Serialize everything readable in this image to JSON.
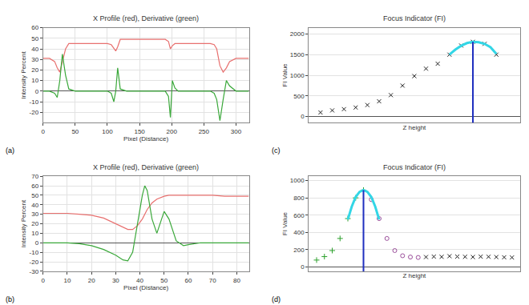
{
  "chart_data": [
    {
      "type": "line",
      "panel": "(a)",
      "title": "X Profile (red), Derivative (green)",
      "x_label": "Pixel (Distance)",
      "y_label": "Intensity Percent",
      "x": [
        0,
        10,
        18,
        22,
        26,
        30,
        35,
        40,
        50,
        100,
        106,
        110,
        113,
        116,
        120,
        130,
        190,
        195,
        198,
        201,
        205,
        210,
        260,
        266,
        270,
        275,
        280,
        285,
        290,
        300,
        320
      ],
      "series": [
        {
          "color": "#e8706f",
          "type": "line",
          "values": [
            31,
            31,
            28,
            22,
            18,
            28,
            40,
            45,
            45,
            45,
            44,
            40,
            38,
            42,
            49,
            49,
            49,
            47,
            40,
            43,
            45,
            45,
            45,
            44,
            40,
            24,
            18,
            22,
            28,
            31,
            31
          ]
        },
        {
          "color": "#3aa83a",
          "type": "line",
          "values": [
            0,
            0,
            -2,
            -6,
            10,
            35,
            15,
            2,
            0,
            0,
            -2,
            -10,
            0,
            22,
            2,
            0,
            0,
            -5,
            -25,
            10,
            3,
            0,
            0,
            -2,
            -8,
            -28,
            -8,
            10,
            5,
            0,
            0
          ]
        }
      ],
      "xlim": [
        0,
        320
      ],
      "xticks": [
        0,
        50,
        100,
        150,
        200,
        250,
        300
      ],
      "ylim": [
        -30,
        60
      ],
      "yticks": [
        -20,
        -10,
        0,
        10,
        20,
        30,
        40,
        50,
        60
      ],
      "grid": true
    },
    {
      "type": "line",
      "panel": "(b)",
      "title": "X Profile (red), Derivative (green)",
      "x_label": "Pixel (Distance)",
      "y_label": "Intensity Percent",
      "x": [
        0,
        5,
        10,
        15,
        20,
        25,
        30,
        33,
        35,
        37,
        39,
        41,
        42,
        43,
        45,
        47,
        50,
        52,
        55,
        58,
        60,
        65,
        70,
        75,
        80,
        85
      ],
      "series": [
        {
          "color": "#e8706f",
          "type": "line",
          "values": [
            31,
            31,
            31,
            30,
            29,
            26,
            20,
            16,
            14,
            14,
            18,
            25,
            30,
            35,
            42,
            46,
            49,
            50,
            50,
            50,
            50,
            50,
            50,
            49,
            49,
            49
          ]
        },
        {
          "color": "#3aa83a",
          "type": "line",
          "values": [
            0,
            0,
            0,
            -1,
            -3,
            -7,
            -13,
            -18,
            -19,
            -10,
            20,
            50,
            60,
            55,
            25,
            10,
            33,
            25,
            2,
            -3,
            -2,
            0,
            0,
            0,
            0,
            0
          ]
        }
      ],
      "xlim": [
        0,
        85
      ],
      "xticks": [
        0,
        10,
        20,
        30,
        40,
        50,
        60,
        70,
        80
      ],
      "ylim": [
        -30,
        70
      ],
      "yticks": [
        -30,
        -20,
        -10,
        0,
        10,
        20,
        30,
        40,
        50,
        60,
        70
      ],
      "grid": true
    },
    {
      "type": "scatter",
      "panel": "(c)",
      "title": "Focus Indicator (FI)",
      "x_label": "Z height",
      "y_label": "FI Value",
      "series": [
        {
          "color": "#222222",
          "type": "scatter",
          "marker": "x",
          "x": [
            1,
            2,
            3,
            4,
            5,
            6,
            7,
            8,
            9,
            10,
            11,
            12,
            13,
            14,
            15,
            16
          ],
          "values": [
            100,
            150,
            180,
            220,
            280,
            370,
            520,
            750,
            980,
            1160,
            1280,
            1500,
            1720,
            1810,
            1760,
            1500
          ]
        },
        {
          "color": "#33d6e6",
          "type": "line",
          "x": [
            12,
            12.5,
            13,
            13.5,
            14,
            14.5,
            15,
            15.5,
            16
          ],
          "values": [
            1500,
            1620,
            1715,
            1780,
            1810,
            1800,
            1760,
            1680,
            1520
          ]
        }
      ],
      "peak": 14,
      "peak_color": "#1f2fbf",
      "xlim": [
        0,
        18
      ],
      "ylim": [
        -150,
        2150
      ],
      "yticks": [
        0,
        500,
        1000,
        1500,
        2000
      ],
      "tick_labels": "y",
      "grid": true
    },
    {
      "type": "scatter",
      "panel": "(d)",
      "title": "Focus Indicator (FI)",
      "x_label": "Z height",
      "y_label": "FI Value",
      "series": [
        {
          "color": "#2ca02c",
          "type": "scatter",
          "marker": "cross",
          "x": [
            1,
            2,
            3,
            4,
            5,
            6,
            7
          ],
          "values": [
            80,
            120,
            190,
            330,
            560,
            800,
            890
          ]
        },
        {
          "color": "#9b4f9b",
          "type": "scatter",
          "marker": "circle",
          "x": [
            8,
            9,
            10,
            11,
            12,
            13,
            14
          ],
          "values": [
            780,
            560,
            330,
            190,
            130,
            115,
            110
          ]
        },
        {
          "color": "#222222",
          "type": "scatter",
          "marker": "x",
          "x": [
            15,
            16,
            17,
            18,
            19,
            20,
            21,
            22,
            23,
            24,
            25,
            26
          ],
          "values": [
            115,
            120,
            118,
            125,
            120,
            118,
            115,
            120,
            118,
            115,
            112,
            110
          ]
        },
        {
          "color": "#33d6e6",
          "type": "line",
          "x": [
            5,
            5.5,
            6,
            6.5,
            7,
            7.5,
            8,
            8.5,
            9
          ],
          "values": [
            550,
            700,
            810,
            870,
            890,
            870,
            810,
            700,
            550
          ]
        }
      ],
      "peak": 7,
      "peak_color": "#1f2fbf",
      "xlim": [
        0,
        27
      ],
      "ylim": [
        -50,
        1050
      ],
      "yticks": [
        0,
        200,
        400,
        600,
        800,
        1000
      ],
      "tick_labels": "y",
      "grid": true
    }
  ]
}
